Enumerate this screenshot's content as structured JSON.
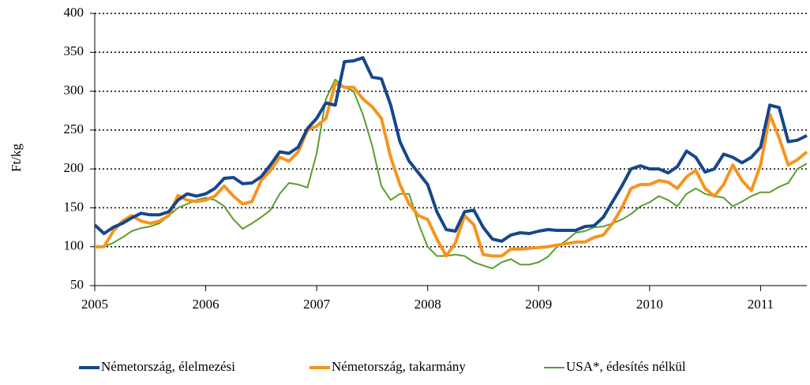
{
  "chart_data": {
    "type": "line",
    "ylabel": "Ft/kg",
    "x": [
      2005,
      2005.083,
      2005.167,
      2005.25,
      2005.333,
      2005.417,
      2005.5,
      2005.583,
      2005.667,
      2005.75,
      2005.833,
      2005.917,
      2006,
      2006.083,
      2006.167,
      2006.25,
      2006.333,
      2006.417,
      2006.5,
      2006.583,
      2006.667,
      2006.75,
      2006.833,
      2006.917,
      2007,
      2007.083,
      2007.167,
      2007.25,
      2007.333,
      2007.417,
      2007.5,
      2007.583,
      2007.667,
      2007.75,
      2007.833,
      2007.917,
      2008,
      2008.083,
      2008.167,
      2008.25,
      2008.333,
      2008.417,
      2008.5,
      2008.583,
      2008.667,
      2008.75,
      2008.833,
      2008.917,
      2009,
      2009.083,
      2009.167,
      2009.25,
      2009.333,
      2009.417,
      2009.5,
      2009.583,
      2009.667,
      2009.75,
      2009.833,
      2009.917,
      2010,
      2010.083,
      2010.167,
      2010.25,
      2010.333,
      2010.417,
      2010.5,
      2010.583,
      2010.667,
      2010.75,
      2010.833,
      2010.917,
      2011,
      2011.083,
      2011.167,
      2011.25,
      2011.333,
      2011.417
    ],
    "series": [
      {
        "name": "Németország, élelmezési",
        "color": "#17468a",
        "width": 4,
        "values": [
          128,
          117,
          125,
          130,
          137,
          143,
          141,
          141,
          145,
          160,
          168,
          165,
          168,
          175,
          188,
          189,
          181,
          182,
          190,
          205,
          222,
          220,
          228,
          252,
          265,
          285,
          282,
          338,
          339,
          343,
          318,
          316,
          282,
          235,
          210,
          195,
          180,
          145,
          122,
          120,
          145,
          147,
          125,
          110,
          107,
          115,
          118,
          117,
          120,
          122,
          121,
          121,
          121,
          126,
          127,
          138,
          158,
          178,
          200,
          204,
          200,
          200,
          195,
          203,
          223,
          215,
          196,
          200,
          219,
          215,
          208,
          215,
          228,
          282,
          279,
          235,
          237,
          243
        ]
      },
      {
        "name": "Németország, takarmány",
        "color": "#f7941d",
        "width": 4,
        "values": [
          100,
          100,
          120,
          133,
          140,
          133,
          130,
          133,
          140,
          166,
          160,
          158,
          160,
          165,
          178,
          165,
          155,
          158,
          185,
          198,
          215,
          210,
          222,
          250,
          255,
          265,
          310,
          305,
          305,
          290,
          280,
          265,
          215,
          180,
          155,
          140,
          135,
          110,
          88,
          105,
          140,
          128,
          90,
          88,
          88,
          97,
          97,
          98,
          99,
          100,
          102,
          104,
          106,
          106,
          112,
          115,
          130,
          150,
          175,
          180,
          180,
          185,
          183,
          175,
          190,
          198,
          175,
          165,
          180,
          205,
          185,
          172,
          205,
          270,
          240,
          205,
          212,
          222
        ]
      },
      {
        "name": "USA*, édesítés nélkül",
        "color": "#5a9e2f",
        "width": 2,
        "values": [
          100,
          100,
          105,
          112,
          120,
          124,
          126,
          130,
          140,
          150,
          155,
          160,
          163,
          160,
          152,
          135,
          123,
          130,
          138,
          147,
          168,
          182,
          180,
          176,
          220,
          290,
          315,
          305,
          300,
          270,
          230,
          178,
          160,
          168,
          168,
          130,
          100,
          88,
          88,
          90,
          88,
          80,
          76,
          72,
          80,
          84,
          77,
          77,
          80,
          87,
          100,
          108,
          118,
          120,
          125,
          126,
          130,
          135,
          142,
          152,
          157,
          165,
          160,
          152,
          168,
          175,
          168,
          165,
          163,
          152,
          158,
          165,
          170,
          170,
          177,
          182,
          200,
          207
        ]
      }
    ],
    "xlim": [
      2005,
      2011.417
    ],
    "xticks": [
      2005,
      2006,
      2007,
      2008,
      2009,
      2010,
      2011
    ],
    "ylim": [
      50,
      400
    ],
    "yticks": [
      50,
      100,
      150,
      200,
      250,
      300,
      350,
      400
    ],
    "grid": true,
    "legend": "bottom"
  }
}
